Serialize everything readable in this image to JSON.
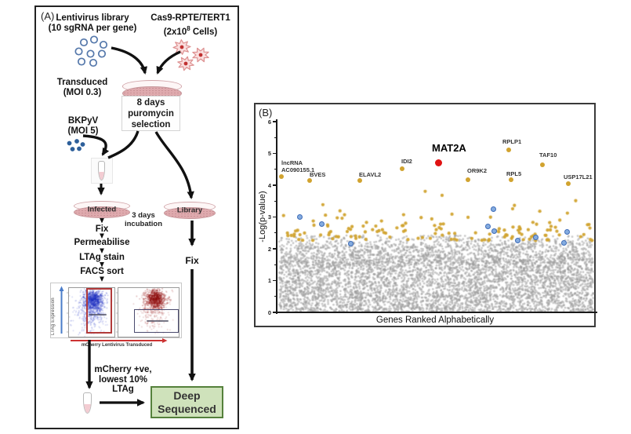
{
  "panel_a": {
    "label": "(A)",
    "lentivirus_title": "Lentivirus library",
    "lentivirus_subtitle": "(10 sgRNA per gene)",
    "cas9_title": "Cas9-RPTE/TERT1",
    "cas9_sub_pre": "(2x10",
    "cas9_sub_sup": "8",
    "cas9_sub_post": " Cells)",
    "transduced": "Transduced\n(MOI 0.3)",
    "selection_box": "8 days\npuromycin\nselection",
    "bkpyv": "BKPyV\n(MOI 5)",
    "infected_dish_label": "Infected",
    "library_dish_label": "Library",
    "incubation": "3 days\nincubation",
    "step_fix": "Fix",
    "step_permeabilise": "Permeabilise",
    "step_ltag_stain": "LTAg stain",
    "step_facs_sort": "FACS sort",
    "library_fix": "Fix",
    "facs_ylabel": "LTAg Expression",
    "facs_xlabel": "mCherry Lentivirus Transduced",
    "mcherry_note": "mCherry +ve,\nlowest 10%\nLTAg",
    "deep_sequenced": "Deep\nSequenced"
  },
  "panel_b": {
    "label": "(B)",
    "chart_data": {
      "type": "scatter",
      "title": "",
      "xlabel": "Genes Ranked Alphabetically",
      "ylabel": "-Log(p-value)",
      "ylim": [
        0,
        6
      ],
      "yticks": [
        0,
        1,
        2,
        3,
        4,
        5,
        6
      ],
      "x_encoding": "genes ordered alphabetically; x stored as fraction 0-1 of axis width",
      "grid": "off",
      "labeled_genes": [
        {
          "name": "lncRNA\nAC090155.1",
          "x": 0.013,
          "y": 4.26,
          "top_hit": false,
          "label_pos": [
            33,
            71
          ]
        },
        {
          "name": "BVES",
          "x": 0.102,
          "y": 4.16,
          "top_hit": false,
          "label_pos": [
            69,
            86
          ]
        },
        {
          "name": "ELAVL2",
          "x": 0.261,
          "y": 4.14,
          "top_hit": false,
          "label_pos": [
            132,
            86
          ]
        },
        {
          "name": "IDI2",
          "x": 0.395,
          "y": 4.51,
          "top_hit": false,
          "label_pos": [
            186,
            69
          ]
        },
        {
          "name": "MAT2A",
          "x": 0.509,
          "y": 4.7,
          "top_hit": true,
          "label_pos": [
            225,
            52
          ]
        },
        {
          "name": "OR9K2",
          "x": 0.603,
          "y": 4.18,
          "top_hit": false,
          "label_pos": [
            270,
            81
          ]
        },
        {
          "name": "RPL5",
          "x": 0.74,
          "y": 4.17,
          "top_hit": false,
          "label_pos": [
            320,
            85
          ]
        },
        {
          "name": "RPLP1",
          "x": 0.731,
          "y": 5.1,
          "top_hit": false,
          "label_pos": [
            315,
            44
          ]
        },
        {
          "name": "TAF10",
          "x": 0.838,
          "y": 4.65,
          "top_hit": false,
          "label_pos": [
            362,
            61
          ]
        },
        {
          "name": "USP17L21",
          "x": 0.921,
          "y": 4.05,
          "top_hit": false,
          "label_pos": [
            393,
            89
          ]
        }
      ],
      "highlighted_points": [
        {
          "x": 0.071,
          "y": 3.0
        },
        {
          "x": 0.142,
          "y": 2.76
        },
        {
          "x": 0.233,
          "y": 2.14
        },
        {
          "x": 0.667,
          "y": 2.68
        },
        {
          "x": 0.686,
          "y": 3.24
        },
        {
          "x": 0.688,
          "y": 2.55
        },
        {
          "x": 0.763,
          "y": 2.24
        },
        {
          "x": 0.82,
          "y": 2.34
        },
        {
          "x": 0.908,
          "y": 2.17
        },
        {
          "x": 0.917,
          "y": 2.51
        }
      ],
      "background_points": {
        "nonsignificant_gray": {
          "n": 5600,
          "y_range": [
            0,
            2.42
          ],
          "note": "dense cloud, density decays above 1.55"
        },
        "significant_gold": {
          "n": 138,
          "y_range": [
            2.26,
            3.9
          ],
          "note": "sparse, exponential decay above 2.26"
        }
      },
      "colors": {
        "nonsignificant": "#9c9c9c",
        "significant": "#d1a32f",
        "highlight": "#85acdf",
        "highlight_border": "#3e6cb8",
        "top_hit": "#e01212"
      }
    }
  },
  "colors": {
    "deep_sequenced_bg": "#cfe2bb",
    "deep_sequenced_border": "#55813c",
    "dish_body": "#dfaaae",
    "virus_outline": "#5578ab",
    "bkpyv_dot": "#2d5f9a",
    "facs_blue": "#2a3cc8",
    "facs_red": "#96121a"
  }
}
